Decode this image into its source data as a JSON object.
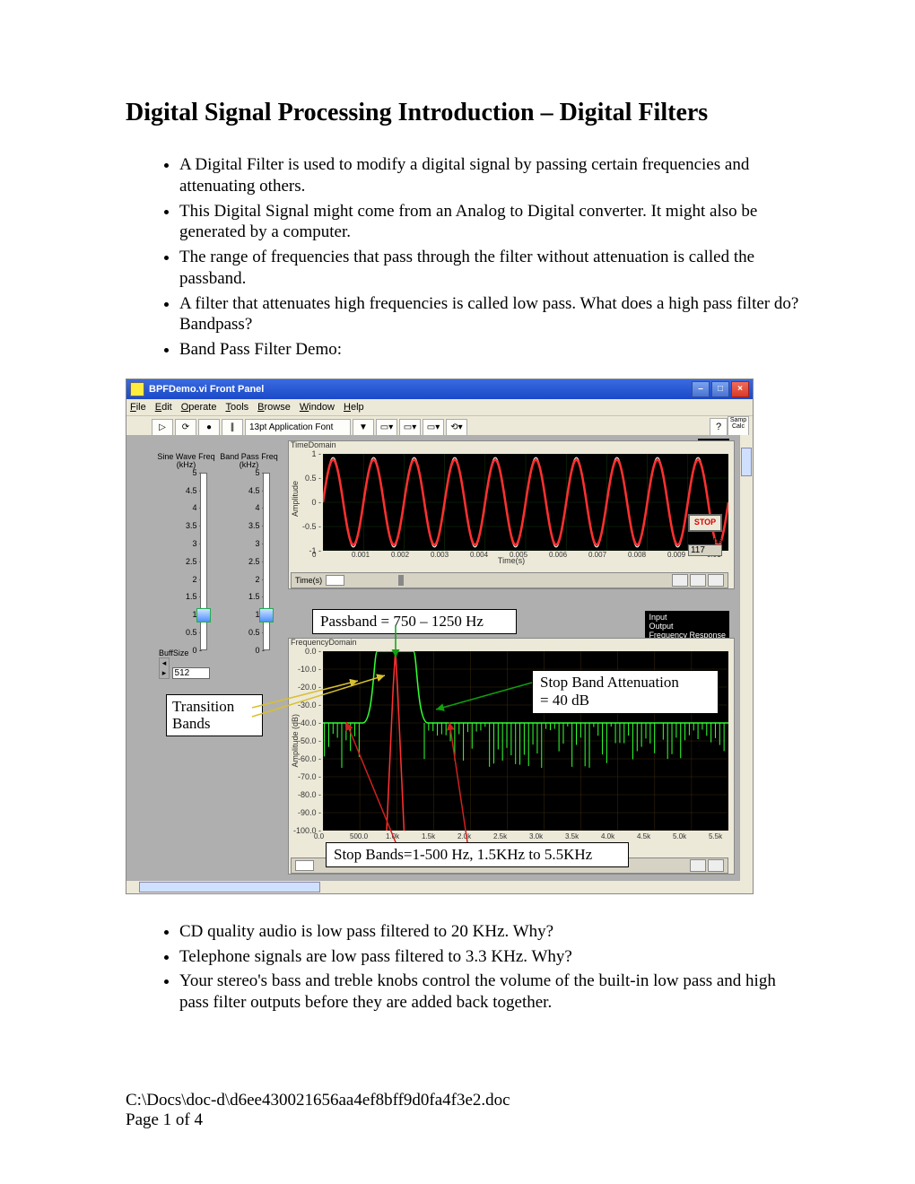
{
  "title": "Digital Signal Processing Introduction – Digital Filters",
  "bullets_top": [
    "A Digital Filter is used to modify a digital signal by passing certain frequencies and attenuating others.",
    "This Digital Signal might come from an Analog to Digital converter. It might also be generated by a computer.",
    "The range of frequencies that pass through the filter without attenuation is called the passband.",
    "A filter that attenuates high frequencies is called low pass. What does a high pass filter do? Bandpass?",
    "Band Pass Filter Demo:"
  ],
  "bullets_bottom": [
    "CD quality audio is low pass filtered to 20 KHz. Why?",
    "Telephone signals are low pass filtered to 3.3 KHz. Why?",
    "Your stereo's bass and treble knobs control the volume of the built-in low pass and high pass filter outputs before they are added back together."
  ],
  "footer_path": "C:\\Docs\\doc-d\\d6ee430021656aa4ef8bff9d0fa4f3e2.doc",
  "footer_page": "Page 1 of 4",
  "window": {
    "title": "BPFDemo.vi Front Panel",
    "menus": [
      "File",
      "Edit",
      "Operate",
      "Tools",
      "Browse",
      "Window",
      "Help"
    ],
    "font_label": "13pt Application Font",
    "help_glyph": "?",
    "samp_label": "Samp\nCalc"
  },
  "sliders": {
    "s1": {
      "title": "Sine Wave Freq\n(kHz)",
      "min": 0,
      "max": 5,
      "value": 1.0
    },
    "s2": {
      "title": "Band Pass Freq\n(kHz)",
      "min": 0,
      "max": 5,
      "value": 1.0
    },
    "ticks": [
      "5",
      "4.5",
      "4",
      "3.5",
      "3",
      "2.5",
      "2",
      "1.5",
      "1",
      "0.5",
      "0"
    ],
    "buff_label": "BuffSize",
    "buff_value": "512"
  },
  "time_chart": {
    "title": "TimeDomain",
    "ylabel": "Amplitude",
    "xlabel": "Time(s)",
    "yticks": [
      "1",
      "0.5",
      "0",
      "-0.5",
      "-1"
    ],
    "xticks": [
      "0",
      "0.001",
      "0.002",
      "0.003",
      "0.004",
      "0.005",
      "0.006",
      "0.007",
      "0.008",
      "0.009",
      "0.01"
    ],
    "legend": [
      [
        "Input",
        "#ffffff"
      ],
      [
        "Output",
        "#ff3030"
      ]
    ],
    "ctrl_label": "Time(s)",
    "colors": {
      "bg": "#000000",
      "grid": "#0c3a0c",
      "input": "#ffffff",
      "output": "#ff3030"
    },
    "freq_hz": 1000,
    "xmax": 0.01
  },
  "freq_chart": {
    "title": "FrequencyDomain",
    "ylabel": "Amplitude (dB)",
    "xlabel": "Frequency (Hz)",
    "yticks": [
      "0.0",
      "-10.0",
      "-20.0",
      "-30.0",
      "-40.0",
      "-50.0",
      "-60.0",
      "-70.0",
      "-80.0",
      "-90.0",
      "-100.0"
    ],
    "xticks": [
      "0.0",
      "500.0",
      "1.0k",
      "1.5k",
      "2.0k",
      "2.5k",
      "3.0k",
      "3.5k",
      "4.0k",
      "4.5k",
      "5.0k",
      "5.5k"
    ],
    "legend": [
      [
        "Input",
        "#ffffff"
      ],
      [
        "Output",
        "#ff3030"
      ],
      [
        "Frequency Response",
        "#30ff30"
      ]
    ],
    "ctrl_label": "",
    "colors": {
      "bg": "#000000",
      "grid": "#3a2a0c",
      "resp": "#30ff30",
      "output": "#ff3030",
      "spikes": "#30ff30"
    },
    "response": {
      "pass_lo": 750,
      "pass_hi": 1250,
      "stop_atten": -40,
      "xmax": 5600,
      "ymin": -100
    },
    "output_peak_hz": 1000
  },
  "stop_label": "STOP",
  "numtaps_label": "NumTaps",
  "numtaps_value": "117",
  "callouts": {
    "passband": "Passband = 750 – 1250 Hz",
    "transition": "Transition\nBands",
    "stopatt": "Stop Band Attenuation\n= 40 dB",
    "stopband": "Stop Bands=1-500 Hz, 1.5KHz to 5.5KHz"
  }
}
